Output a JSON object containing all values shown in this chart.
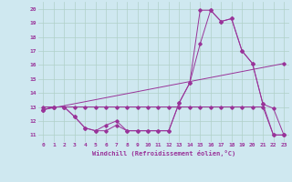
{
  "xlabel": "Windchill (Refroidissement éolien,°C)",
  "xlim": [
    -0.5,
    23.5
  ],
  "ylim": [
    10.5,
    20.5
  ],
  "yticks": [
    11,
    12,
    13,
    14,
    15,
    16,
    17,
    18,
    19,
    20
  ],
  "xticks": [
    0,
    1,
    2,
    3,
    4,
    5,
    6,
    7,
    8,
    9,
    10,
    11,
    12,
    13,
    14,
    15,
    16,
    17,
    18,
    19,
    20,
    21,
    22,
    23
  ],
  "background_color": "#cfe8f0",
  "line_color": "#993399",
  "grid_color": "#b0d0c8",
  "line1_x": [
    0,
    1,
    2,
    3,
    4,
    5,
    6,
    7,
    8,
    9,
    10,
    11,
    12,
    13,
    14,
    15,
    16,
    17,
    18,
    19,
    20,
    21,
    22,
    23
  ],
  "line1_y": [
    13.0,
    13.0,
    13.0,
    13.0,
    13.0,
    13.0,
    13.0,
    13.0,
    13.0,
    13.0,
    13.0,
    13.0,
    13.0,
    13.0,
    13.0,
    13.0,
    13.0,
    13.0,
    13.0,
    13.0,
    13.0,
    13.0,
    11.0,
    11.0
  ],
  "line2_x": [
    0,
    1,
    2,
    3,
    4,
    5,
    6,
    7,
    8,
    9,
    10,
    11,
    12,
    13,
    14,
    15,
    16,
    17,
    18,
    19,
    20,
    21,
    22,
    23
  ],
  "line2_y": [
    12.8,
    13.0,
    13.0,
    12.3,
    11.5,
    11.3,
    11.3,
    11.7,
    11.3,
    11.3,
    11.3,
    11.3,
    11.3,
    13.3,
    14.7,
    19.9,
    19.9,
    19.1,
    19.3,
    17.0,
    16.1,
    13.2,
    12.9,
    11.0
  ],
  "line3_x": [
    0,
    1,
    2,
    3,
    4,
    5,
    6,
    7,
    8,
    9,
    10,
    11,
    12,
    13,
    14,
    15,
    16,
    17,
    18,
    19,
    20,
    21,
    22,
    23
  ],
  "line3_y": [
    12.8,
    13.0,
    13.0,
    12.3,
    11.5,
    11.3,
    11.7,
    12.0,
    11.3,
    11.3,
    11.3,
    11.3,
    11.3,
    13.3,
    14.7,
    17.5,
    19.9,
    19.1,
    19.3,
    17.0,
    16.1,
    13.2,
    11.0,
    11.0
  ],
  "line4_x": [
    0,
    23
  ],
  "line4_y": [
    12.8,
    16.1
  ]
}
